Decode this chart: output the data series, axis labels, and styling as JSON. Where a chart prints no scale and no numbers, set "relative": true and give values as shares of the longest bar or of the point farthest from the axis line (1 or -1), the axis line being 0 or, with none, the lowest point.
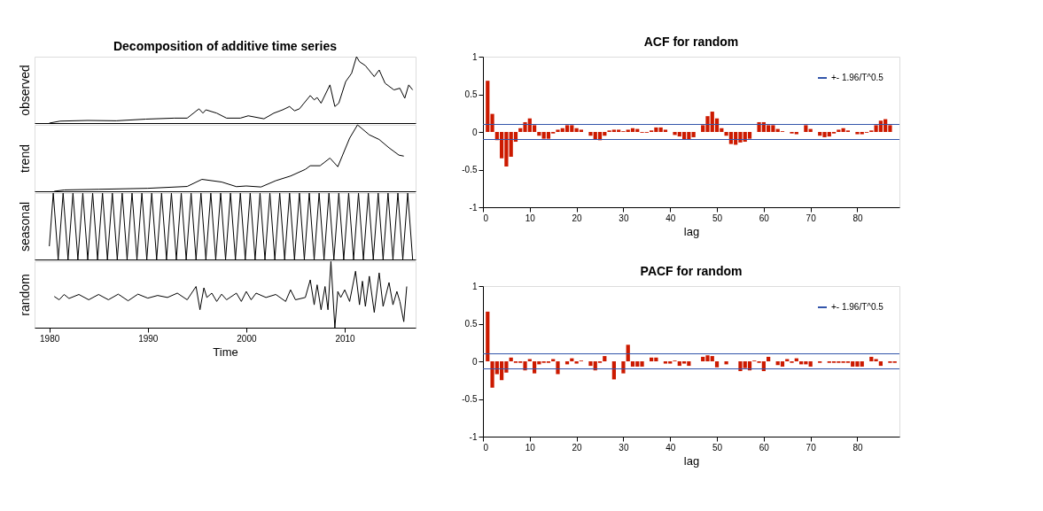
{
  "chart_data": [
    {
      "type": "line",
      "title": "Decomposition of additive time series",
      "ylabel": "observed",
      "relative": true,
      "xlim": [
        1978.5,
        2017.2
      ],
      "xticks": [
        1980,
        1990,
        2000,
        2010
      ],
      "tick_labels": false,
      "series": [
        {
          "color": "#000000",
          "x": [
            1980.0,
            1981.1,
            1983.9,
            1986.8,
            1989.8,
            1992.7,
            1994.0,
            1995.2,
            1995.6,
            1995.9,
            1997.0,
            1998.0,
            1999.4,
            2000.2,
            2001.8,
            2002.8,
            2003.7,
            2004.4,
            2004.9,
            2005.4,
            2006.5,
            2006.9,
            2007.2,
            2007.6,
            2008.5,
            2009.0,
            2009.4,
            2010.1,
            2010.7,
            2011.2,
            2011.5,
            2012.1,
            2013.0,
            2013.5,
            2014.1,
            2015.0,
            2015.6,
            2016.1,
            2016.5,
            2016.9
          ],
          "values": [
            0,
            0.03,
            0.04,
            0.035,
            0.06,
            0.075,
            0.075,
            0.215,
            0.15,
            0.2,
            0.15,
            0.075,
            0.075,
            0.11,
            0.065,
            0.15,
            0.2,
            0.25,
            0.185,
            0.215,
            0.415,
            0.35,
            0.385,
            0.3,
            0.575,
            0.25,
            0.3,
            0.625,
            0.75,
            1,
            0.925,
            0.865,
            0.7,
            0.8,
            0.6,
            0.5,
            0.525,
            0.375,
            0.575,
            0.5
          ]
        }
      ]
    },
    {
      "type": "line",
      "ylabel": "trend",
      "relative": true,
      "xlim": [
        1978.5,
        2017.2
      ],
      "xticks": [
        1980,
        1990,
        2000,
        2010
      ],
      "tick_labels": false,
      "series": [
        {
          "color": "#000000",
          "x": [
            1980.5,
            1981.5,
            1985.0,
            1990.0,
            1994.0,
            1995.5,
            1997.5,
            1999.0,
            2000.0,
            2001.5,
            2003.0,
            2004.5,
            2006.0,
            2006.5,
            2007.5,
            2008.5,
            2009.3,
            2010.5,
            2011.3,
            2012.5,
            2013.5,
            2014.5,
            2015.5,
            2016.0
          ],
          "values": [
            0,
            0.02,
            0.03,
            0.045,
            0.073,
            0.18,
            0.14,
            0.07,
            0.08,
            0.065,
            0.16,
            0.23,
            0.33,
            0.385,
            0.385,
            0.5,
            0.37,
            0.8,
            1,
            0.85,
            0.78,
            0.655,
            0.545,
            0.53
          ]
        }
      ]
    },
    {
      "type": "line",
      "ylabel": "seasonal",
      "relative": true,
      "xlim": [
        1978.5,
        2017.2
      ],
      "xticks": [
        1980,
        1990,
        2000,
        2010
      ],
      "tick_labels": false,
      "series": [
        {
          "color": "#000000",
          "x": [
            1980.0,
            1980.4,
            1980.9,
            1981.4,
            1981.9,
            1982.4,
            1982.9,
            1983.4,
            1983.9,
            1984.4,
            1984.9,
            1985.4,
            1985.9,
            1986.4,
            1986.9,
            1987.4,
            1987.9,
            1988.4,
            1988.9,
            1989.4,
            1989.9,
            1990.4,
            1990.9,
            1991.4,
            1991.9,
            1992.4,
            1992.9,
            1993.4,
            1993.9,
            1994.4,
            1994.9,
            1995.4,
            1995.9,
            1996.4,
            1996.9,
            1997.4,
            1997.9,
            1998.4,
            1998.9,
            1999.4,
            1999.9,
            2000.4,
            2000.9,
            2001.4,
            2001.9,
            2002.4,
            2002.9,
            2003.4,
            2003.9,
            2004.4,
            2004.9,
            2005.4,
            2005.9,
            2006.4,
            2006.9,
            2007.4,
            2007.9,
            2008.4,
            2008.9,
            2009.4,
            2009.9,
            2010.4,
            2010.9,
            2011.4,
            2011.9,
            2012.4,
            2012.9,
            2013.4,
            2013.9,
            2014.4,
            2014.9,
            2015.4,
            2015.9,
            2016.4,
            2016.9
          ],
          "values": [
            0.2,
            1,
            0,
            1,
            0,
            1,
            0,
            1,
            0,
            1,
            0,
            1,
            0,
            1,
            0,
            1,
            0,
            1,
            0,
            1,
            0,
            1,
            0,
            1,
            0,
            1,
            0,
            1,
            0,
            1,
            0,
            1,
            0,
            1,
            0,
            1,
            0,
            1,
            0,
            1,
            0,
            1,
            0,
            1,
            0,
            1,
            0,
            1,
            0,
            1,
            0,
            1,
            0,
            1,
            0,
            1,
            0,
            1,
            0,
            1,
            0,
            1,
            0,
            1,
            0,
            1,
            0,
            1,
            0,
            1,
            0,
            1,
            0,
            1,
            0
          ]
        }
      ]
    },
    {
      "type": "line",
      "ylabel": "random",
      "xlabel": "Time",
      "relative": true,
      "xlim": [
        1978.5,
        2017.2
      ],
      "xticks": [
        1980,
        1990,
        2000,
        2010
      ],
      "tick_labels": "x",
      "series": [
        {
          "color": "#000000",
          "x": [
            1980.5,
            1981.0,
            1981.5,
            1982.0,
            1983.0,
            1984.0,
            1985.0,
            1986.0,
            1987.0,
            1988.0,
            1989.0,
            1990.0,
            1991.0,
            1992.0,
            1993.0,
            1994.0,
            1994.9,
            1995.3,
            1995.7,
            1996.0,
            1996.5,
            1997.0,
            1997.5,
            1998.0,
            1999.0,
            1999.5,
            2000.0,
            2000.5,
            2001.0,
            2002.0,
            2003.0,
            2004.0,
            2004.5,
            2005.0,
            2006.0,
            2006.5,
            2006.9,
            2007.2,
            2007.6,
            2008.0,
            2008.3,
            2008.6,
            2009.0,
            2009.3,
            2009.6,
            2010.0,
            2010.5,
            2011.1,
            2011.5,
            2011.8,
            2012.1,
            2012.5,
            2013.0,
            2013.5,
            2013.9,
            2014.5,
            2014.9,
            2015.3,
            2015.6,
            2016.0,
            2016.3
          ],
          "values": [
            0.47,
            0.42,
            0.5,
            0.44,
            0.5,
            0.42,
            0.5,
            0.42,
            0.505,
            0.405,
            0.505,
            0.445,
            0.485,
            0.455,
            0.52,
            0.42,
            0.62,
            0.27,
            0.6,
            0.455,
            0.52,
            0.395,
            0.505,
            0.42,
            0.52,
            0.395,
            0.545,
            0.42,
            0.52,
            0.455,
            0.5,
            0.395,
            0.57,
            0.42,
            0.455,
            0.72,
            0.345,
            0.645,
            0.27,
            0.62,
            0.27,
            1,
            0,
            0.545,
            0.455,
            0.57,
            0.395,
            0.85,
            0.345,
            0.7,
            0.32,
            0.775,
            0.23,
            0.825,
            0.32,
            0.68,
            0.345,
            0.545,
            0.395,
            0.09,
            0.62
          ]
        }
      ]
    },
    {
      "type": "bar",
      "title": "ACF for random",
      "xlabel": "lag",
      "xlim": [
        0,
        89
      ],
      "xticks": [
        0,
        10,
        20,
        30,
        40,
        50,
        60,
        70,
        80
      ],
      "ylim": [
        -1,
        1
      ],
      "yticks": [
        -1,
        -0.5,
        0,
        0.5,
        1
      ],
      "legend": "top right",
      "x": [
        1,
        2,
        3,
        4,
        5,
        6,
        7,
        8,
        9,
        10,
        11,
        12,
        13,
        14,
        15,
        16,
        17,
        18,
        19,
        20,
        21,
        22,
        23,
        24,
        25,
        26,
        27,
        28,
        29,
        30,
        31,
        32,
        33,
        34,
        35,
        36,
        37,
        38,
        39,
        40,
        41,
        42,
        43,
        44,
        45,
        46,
        47,
        48,
        49,
        50,
        51,
        52,
        53,
        54,
        55,
        56,
        57,
        58,
        59,
        60,
        61,
        62,
        63,
        64,
        65,
        66,
        67,
        68,
        69,
        70,
        71,
        72,
        73,
        74,
        75,
        76,
        77,
        78,
        79,
        80,
        81,
        82,
        83,
        84,
        85,
        86,
        87,
        88
      ],
      "series": [
        {
          "color": "#cc1a00",
          "values": [
            0.68,
            0.24,
            -0.11,
            -0.35,
            -0.46,
            -0.33,
            -0.13,
            0.05,
            0.13,
            0.18,
            0.09,
            -0.05,
            -0.09,
            -0.09,
            -0.02,
            0.03,
            0.05,
            0.09,
            0.09,
            0.05,
            0.03,
            0,
            -0.05,
            -0.1,
            -0.11,
            -0.05,
            0.02,
            0.03,
            0.03,
            0.01,
            0.03,
            0.05,
            0.04,
            -0.01,
            -0.01,
            0.02,
            0.06,
            0.06,
            0.03,
            0,
            -0.04,
            -0.06,
            -0.1,
            -0.1,
            -0.07,
            0,
            0.09,
            0.21,
            0.27,
            0.18,
            0.05,
            -0.05,
            -0.16,
            -0.17,
            -0.14,
            -0.13,
            -0.09,
            0,
            0.13,
            0.13,
            0.09,
            0.09,
            0.04,
            0.01,
            0,
            -0.02,
            -0.03,
            0,
            0.09,
            0.04,
            0,
            -0.05,
            -0.07,
            -0.06,
            -0.02,
            0.03,
            0.05,
            0.02,
            0,
            -0.03,
            -0.03,
            -0.01,
            0.02,
            0.09,
            0.15,
            0.17,
            0.09,
            0
          ]
        }
      ],
      "ref_lines": [
        {
          "axis": "y",
          "value": 0.1,
          "label": "+- 1.96/T^0.5",
          "color": "#3355aa"
        },
        {
          "axis": "y",
          "value": -0.1,
          "color": "#3355aa"
        }
      ]
    },
    {
      "type": "bar",
      "title": "PACF for random",
      "xlabel": "lag",
      "xlim": [
        0,
        89
      ],
      "xticks": [
        0,
        10,
        20,
        30,
        40,
        50,
        60,
        70,
        80
      ],
      "ylim": [
        -1,
        1
      ],
      "yticks": [
        -1,
        -0.5,
        0,
        0.5,
        1
      ],
      "legend": "top right",
      "x": [
        1,
        2,
        3,
        4,
        5,
        6,
        7,
        8,
        9,
        10,
        11,
        12,
        13,
        14,
        15,
        16,
        17,
        18,
        19,
        20,
        21,
        22,
        23,
        24,
        25,
        26,
        27,
        28,
        29,
        30,
        31,
        32,
        33,
        34,
        35,
        36,
        37,
        38,
        39,
        40,
        41,
        42,
        43,
        44,
        45,
        46,
        47,
        48,
        49,
        50,
        51,
        52,
        53,
        54,
        55,
        56,
        57,
        58,
        59,
        60,
        61,
        62,
        63,
        64,
        65,
        66,
        67,
        68,
        69,
        70,
        71,
        72,
        73,
        74,
        75,
        76,
        77,
        78,
        79,
        80,
        81,
        82,
        83,
        84,
        85,
        86,
        87,
        88
      ],
      "series": [
        {
          "color": "#cc1a00",
          "values": [
            0.66,
            -0.35,
            -0.17,
            -0.25,
            -0.15,
            0.05,
            -0.02,
            -0.02,
            -0.12,
            0.03,
            -0.16,
            -0.04,
            -0.02,
            -0.02,
            0.03,
            -0.17,
            0,
            -0.04,
            0.04,
            -0.03,
            0.01,
            0,
            -0.06,
            -0.12,
            -0.02,
            0.07,
            0,
            -0.24,
            0,
            -0.16,
            0.22,
            -0.07,
            -0.07,
            -0.07,
            0,
            0.05,
            0.05,
            0,
            -0.03,
            -0.03,
            0.01,
            -0.06,
            -0.03,
            -0.06,
            0,
            0,
            0.06,
            0.08,
            0.07,
            -0.08,
            0,
            -0.04,
            0,
            0,
            -0.13,
            -0.09,
            -0.12,
            0.01,
            -0.02,
            -0.13,
            0.06,
            0,
            -0.05,
            -0.07,
            0.03,
            -0.02,
            0.04,
            -0.04,
            -0.04,
            -0.07,
            0,
            -0.02,
            0,
            -0.02,
            -0.02,
            -0.02,
            -0.02,
            -0.02,
            -0.07,
            -0.07,
            -0.07,
            0,
            0.06,
            0.03,
            -0.06,
            0,
            -0.02,
            -0.02
          ]
        }
      ],
      "ref_lines": [
        {
          "axis": "y",
          "value": 0.1,
          "label": "+- 1.96/T^0.5",
          "color": "#3355aa"
        },
        {
          "axis": "y",
          "value": -0.1,
          "color": "#3355aa"
        }
      ]
    }
  ]
}
